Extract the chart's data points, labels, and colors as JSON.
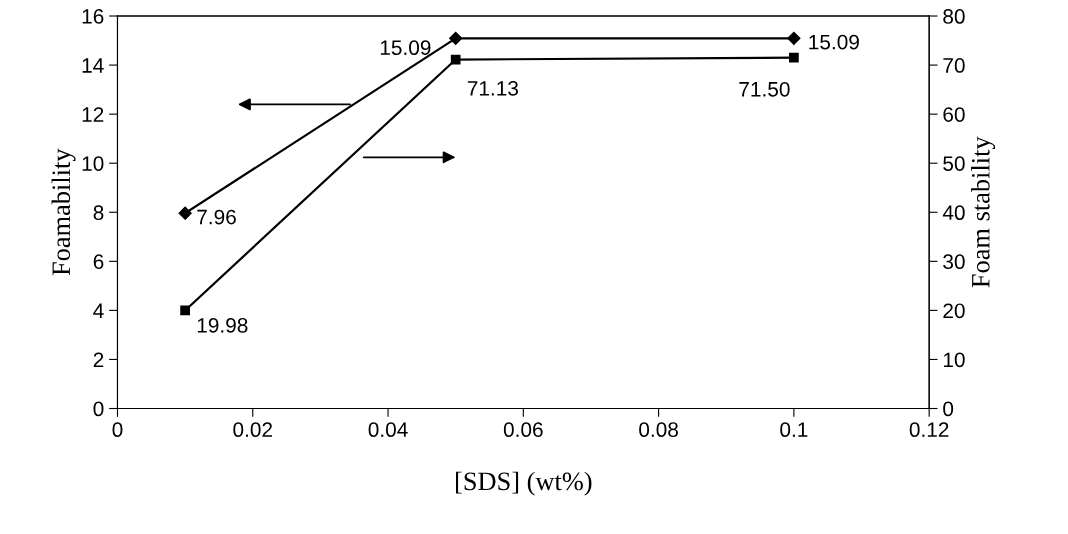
{
  "chart_data": {
    "type": "line",
    "xlabel": "[SDS] (wt%)",
    "ylabel": "Foamability",
    "y2label": "Foam stability",
    "x": [
      0.01,
      0.05,
      0.1
    ],
    "series": [
      {
        "color": "#000000",
        "marker": "diamond",
        "values": [
          7.96,
          15.09,
          15.09
        ],
        "value_labels": [
          "7.96",
          "15.09",
          "15.09"
        ]
      },
      {
        "color": "#000000",
        "marker": "square",
        "axis": "y2",
        "values": [
          19.98,
          71.13,
          71.5
        ],
        "value_labels": [
          "19.98",
          "71.13",
          "71.50"
        ]
      }
    ],
    "xlim": [
      0,
      0.12
    ],
    "xticks": [
      0,
      0.02,
      0.04,
      0.06,
      0.08,
      0.1,
      0.12
    ],
    "ylim": [
      0,
      16
    ],
    "yticks": [
      0,
      2,
      4,
      6,
      8,
      10,
      12,
      14,
      16
    ],
    "y2lim": [
      0,
      80
    ],
    "y2ticks": [
      0,
      10,
      20,
      30,
      40,
      50,
      60,
      70,
      80
    ],
    "grid": false,
    "line_style": "solid"
  }
}
